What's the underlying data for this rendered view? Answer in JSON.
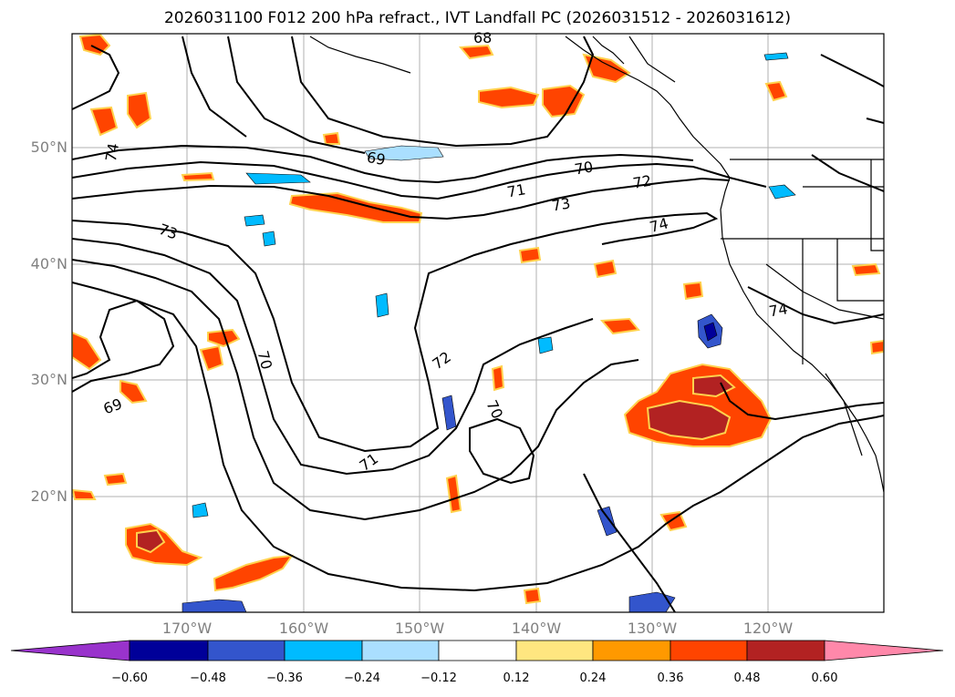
{
  "title": "2026031100 F012 200 hPa refract., IVT Landfall PC (2026031512 - 2026031612)",
  "map": {
    "lat_labels": [
      "50°N",
      "40°N",
      "30°N",
      "20°N"
    ],
    "lon_labels": [
      "170°W",
      "160°W",
      "150°W",
      "140°W",
      "130°W",
      "120°W"
    ],
    "contour_labels": [
      "68",
      "74",
      "69",
      "70",
      "71",
      "72",
      "73",
      "74",
      "73",
      "74",
      "70",
      "69",
      "72",
      "70",
      "71"
    ],
    "coastline_color": "#000000"
  },
  "colorbar": {
    "ticks": [
      "−0.60",
      "−0.48",
      "−0.36",
      "−0.24",
      "−0.12",
      "0.12",
      "0.24",
      "0.36",
      "0.48",
      "0.60"
    ],
    "colors": [
      "#9933cc",
      "#000099",
      "#3355cc",
      "#00bbff",
      "#aadfff",
      "#ffffff",
      "#ffe680",
      "#ff9900",
      "#ff4400",
      "#b22222",
      "#ff88aa"
    ]
  }
}
